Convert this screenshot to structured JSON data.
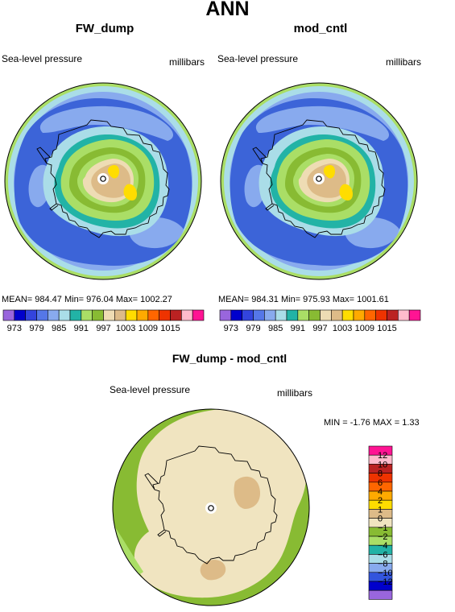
{
  "page_title": "ANN",
  "panels": [
    {
      "title": "FW_dump",
      "field_label": "Sea-level pressure",
      "units": "millibars",
      "stats": "MEAN= 984.47   Min= 976.04   Max= 1002.27"
    },
    {
      "title": "mod_cntl",
      "field_label": "Sea-level pressure",
      "units": "millibars",
      "stats": "MEAN= 984.31   Min= 975.93   Max= 1001.61"
    },
    {
      "title": "FW_dump - mod_cntl",
      "field_label": "Sea-level pressure",
      "units": "millibars",
      "stats": "MIN =   -1.76  MAX =    1.33"
    }
  ],
  "chart_data": [
    {
      "type": "heatmap",
      "title": "FW_dump",
      "variable": "Sea-level pressure",
      "units": "millibars",
      "projection": "polar stereographic (south pole)",
      "mean": 984.47,
      "min": 976.04,
      "max": 1002.27,
      "colorbar_levels": [
        973,
        976,
        979,
        982,
        985,
        988,
        991,
        994,
        997,
        1000,
        1003,
        1006,
        1009,
        1012,
        1015
      ],
      "colorbar_tick_labels": [
        "973",
        "979",
        "985",
        "991",
        "997",
        "1003",
        "1009",
        "1015"
      ],
      "colorbar_colors": [
        "#9966dd",
        "#0000cc",
        "#3344dd",
        "#5577e8",
        "#88aaee",
        "#aadde8",
        "#22b3a6",
        "#aade66",
        "#88bb33",
        "#eedcb4",
        "#ddbb88",
        "#ffdd00",
        "#ffaa00",
        "#ff6600",
        "#ee3300",
        "#bb2222",
        "#ffbbcc",
        "#ff1493"
      ]
    },
    {
      "type": "heatmap",
      "title": "mod_cntl",
      "variable": "Sea-level pressure",
      "units": "millibars",
      "projection": "polar stereographic (south pole)",
      "mean": 984.31,
      "min": 975.93,
      "max": 1001.61,
      "colorbar_levels": [
        973,
        976,
        979,
        982,
        985,
        988,
        991,
        994,
        997,
        1000,
        1003,
        1006,
        1009,
        1012,
        1015
      ],
      "colorbar_tick_labels": [
        "973",
        "979",
        "985",
        "991",
        "997",
        "1003",
        "1009",
        "1015"
      ]
    },
    {
      "type": "heatmap",
      "title": "FW_dump - mod_cntl",
      "variable": "Sea-level pressure",
      "units": "millibars",
      "projection": "polar stereographic (south pole)",
      "min": -1.76,
      "max": 1.33,
      "colorbar_tick_labels": [
        "12",
        "10",
        "8",
        "6",
        "4",
        "2",
        "1",
        "0",
        "−1",
        "−2",
        "−4",
        "−6",
        "−8",
        "−10",
        "−12"
      ],
      "colorbar_colors": [
        "#ff1493",
        "#ffbbcc",
        "#bb2222",
        "#ee3300",
        "#ff6600",
        "#ffaa00",
        "#ffdd00",
        "#ddbb88",
        "#f0e4c0",
        "#88bb33",
        "#aade66",
        "#22b3a6",
        "#aadde8",
        "#88aaee",
        "#3355dd",
        "#0000cc",
        "#9966dd"
      ]
    }
  ]
}
